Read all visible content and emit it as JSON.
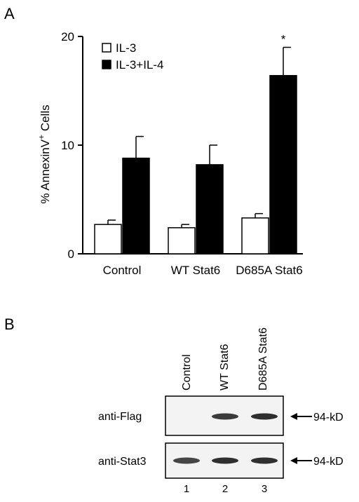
{
  "panel_a": {
    "letter": "A",
    "ylabel_main": "% AnnexinV",
    "ylabel_sup": "+",
    "ylabel_tail": " Cells"
  },
  "panel_b": {
    "letter": "B",
    "lane_headers": [
      "Control",
      "WT Stat6",
      "D685A Stat6"
    ],
    "lane_numbers": [
      "1",
      "2",
      "3"
    ],
    "blots": [
      {
        "label": "anti-Flag",
        "marker": "94-kD",
        "band_intensity": [
          0.0,
          0.85,
          0.9
        ]
      },
      {
        "label": "anti-Stat3",
        "marker": "94-kD",
        "band_intensity": [
          0.8,
          0.9,
          0.9
        ]
      }
    ]
  },
  "chart_data": {
    "type": "bar",
    "categories": [
      "Control",
      "WT Stat6",
      "D685A Stat6"
    ],
    "series": [
      {
        "name": "IL-3",
        "values": [
          2.7,
          2.4,
          3.3
        ],
        "errors": [
          0.4,
          0.3,
          0.4
        ],
        "fill": "#ffffff"
      },
      {
        "name": "IL-3+IL-4",
        "values": [
          8.8,
          8.2,
          16.4
        ],
        "errors": [
          2.0,
          1.8,
          2.6
        ],
        "fill": "#000000"
      }
    ],
    "ylim": [
      0,
      20
    ],
    "yticks": [
      0,
      10,
      20
    ],
    "ytick_labels": [
      "0",
      "10",
      "20"
    ],
    "significance": [
      {
        "category": "D685A Stat6",
        "series": "IL-3+IL-4",
        "mark": "*"
      }
    ],
    "legend_position": "top-left"
  }
}
